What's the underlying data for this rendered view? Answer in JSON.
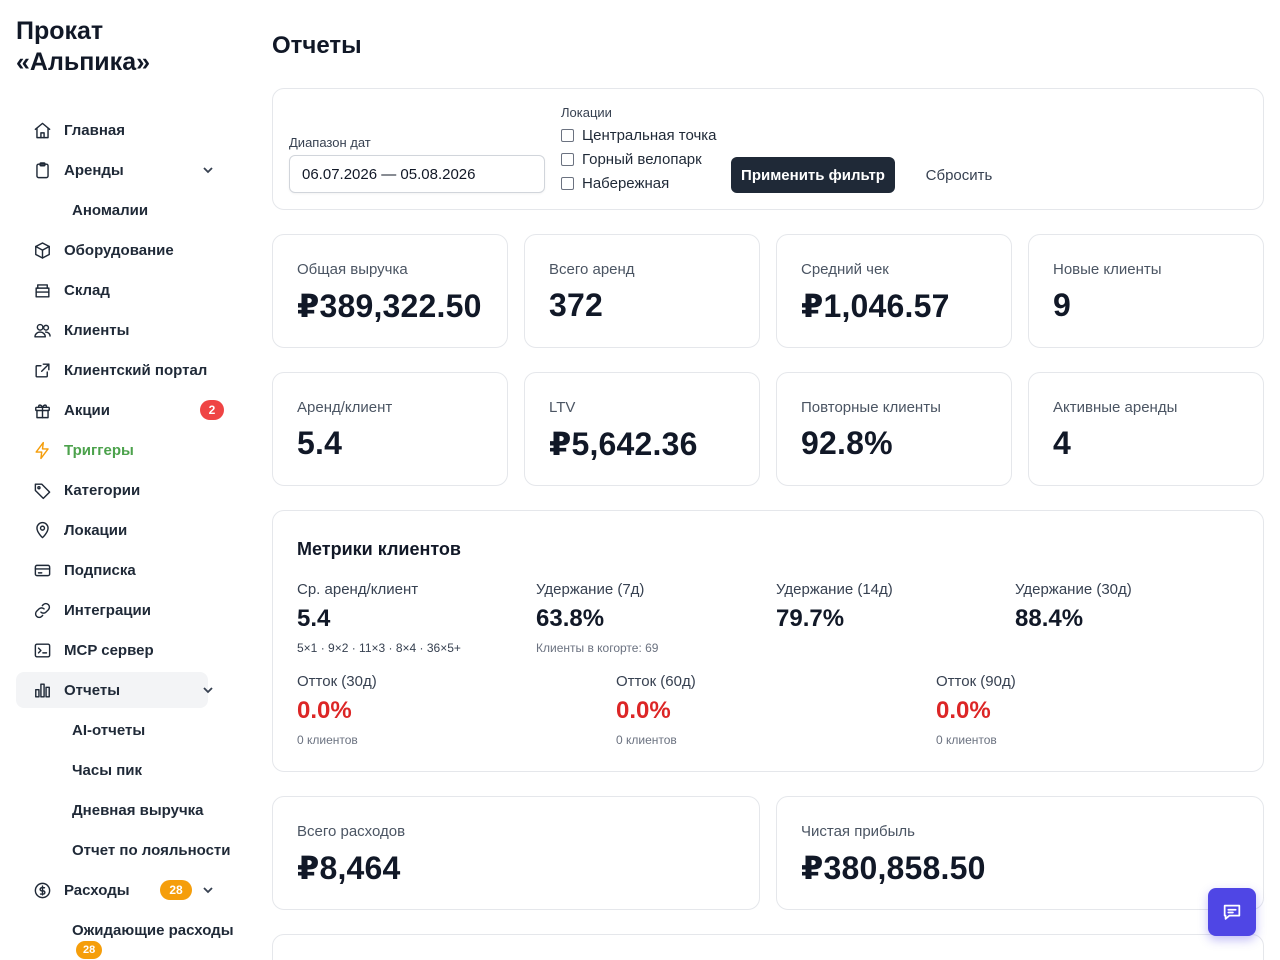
{
  "app": {
    "title": "Прокат «Альпика»"
  },
  "sidebar": {
    "items": [
      {
        "label": "Главная",
        "icon": "home-icon"
      },
      {
        "label": "Аренды",
        "icon": "clipboard-icon",
        "expanded": true
      },
      {
        "label": "Аномалии"
      },
      {
        "label": "Оборудование",
        "icon": "box-icon"
      },
      {
        "label": "Склад",
        "icon": "warehouse-icon"
      },
      {
        "label": "Клиенты",
        "icon": "users-icon"
      },
      {
        "label": "Клиентский портал",
        "icon": "external-link-icon"
      },
      {
        "label": "Акции",
        "icon": "gift-icon",
        "badge": "2"
      },
      {
        "label": "Триггеры",
        "icon": "bolt-icon"
      },
      {
        "label": "Категории",
        "icon": "tag-icon"
      },
      {
        "label": "Локации",
        "icon": "map-pin-icon"
      },
      {
        "label": "Подписка",
        "icon": "credit-card-icon"
      },
      {
        "label": "Интеграции",
        "icon": "link-icon"
      },
      {
        "label": "MCP сервер",
        "icon": "terminal-icon"
      },
      {
        "label": "Отчеты",
        "icon": "bar-chart-icon",
        "active": true,
        "expanded": true
      },
      {
        "label": "AI-отчеты"
      },
      {
        "label": "Часы пик"
      },
      {
        "label": "Дневная выручка"
      },
      {
        "label": "Отчет по лояльности"
      },
      {
        "label": "Расходы",
        "icon": "dollar-circle-icon",
        "badge": "28",
        "expanded": true
      },
      {
        "label": "Ожидающие расходы",
        "badge": "28"
      }
    ]
  },
  "page": {
    "title": "Отчеты"
  },
  "filters": {
    "date_label": "Диапазон дат",
    "date_value": "06.07.2026 — 05.08.2026",
    "locations_label": "Локации",
    "locations": [
      "Центральная точка",
      "Горный велопарк",
      "Набережная"
    ],
    "apply_label": "Применить фильтр",
    "reset_label": "Сбросить"
  },
  "kpis": [
    {
      "label": "Общая выручка",
      "value": "₽389,322.50"
    },
    {
      "label": "Всего аренд",
      "value": "372"
    },
    {
      "label": "Средний чек",
      "value": "₽1,046.57"
    },
    {
      "label": "Новые клиенты",
      "value": "9"
    },
    {
      "label": "Аренд/клиент",
      "value": "5.4"
    },
    {
      "label": "LTV",
      "value": "₽5,642.36"
    },
    {
      "label": "Повторные клиенты",
      "value": "92.8%"
    },
    {
      "label": "Активные аренды",
      "value": "4"
    }
  ],
  "customer_metrics": {
    "title": "Метрики клиентов",
    "avg_rentals": {
      "label": "Ср. аренд/клиент",
      "value": "5.4",
      "sub": "5×1 · 9×2 · 11×3 · 8×4 · 36×5+"
    },
    "retention_7": {
      "label": "Удержание (7д)",
      "value": "63.8%",
      "sub": "Клиенты в когорте: 69"
    },
    "retention_14": {
      "label": "Удержание (14д)",
      "value": "79.7%"
    },
    "retention_30": {
      "label": "Удержание (30д)",
      "value": "88.4%"
    },
    "churn_30": {
      "label": "Отток (30д)",
      "value": "0.0%",
      "sub": "0 клиентов"
    },
    "churn_60": {
      "label": "Отток (60д)",
      "value": "0.0%",
      "sub": "0 клиентов"
    },
    "churn_90": {
      "label": "Отток (90д)",
      "value": "0.0%",
      "sub": "0 клиентов"
    }
  },
  "finance": {
    "expenses": {
      "label": "Всего расходов",
      "value": "₽8,464"
    },
    "profit": {
      "label": "Чистая прибыль",
      "value": "₽380,858.50"
    }
  },
  "colors": {
    "accent": "#4f46e5",
    "danger": "#dc2626",
    "primary_btn": "#1f2937",
    "badge_red": "#ef4444",
    "badge_orange": "#f59e0b"
  }
}
